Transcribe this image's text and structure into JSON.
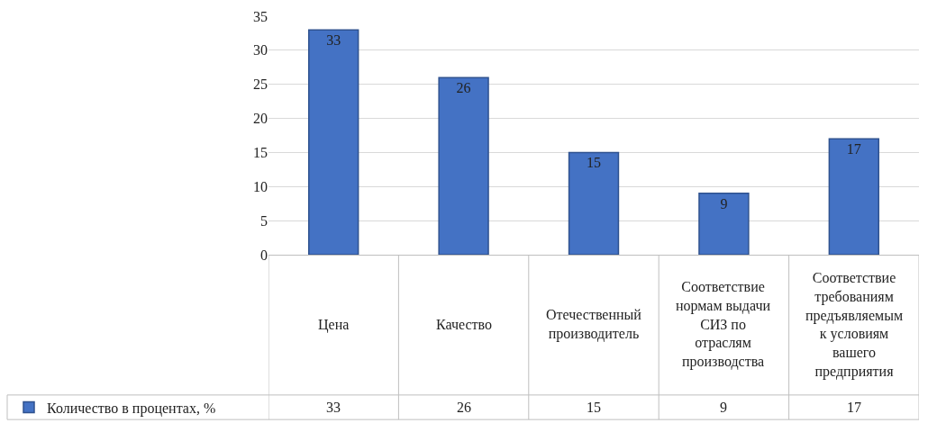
{
  "chart_data": {
    "type": "bar",
    "categories": [
      "Цена",
      "Качество",
      "Отечественный производитель",
      "Соответствие нормам выдачи СИЗ по отраслям производства",
      "Соответствие требованиям предъявляемым к условиям вашего предприятия"
    ],
    "series": [
      {
        "name": "Количество в процентах, %",
        "color": "#4472c4",
        "values": [
          33,
          26,
          15,
          9,
          17
        ],
        "value_labels": [
          "33",
          "26",
          "15",
          "9",
          "17"
        ]
      }
    ],
    "ylim": [
      0,
      35
    ],
    "yticks": [
      0,
      5,
      10,
      15,
      20,
      25,
      30,
      35
    ],
    "grid": "y",
    "annotations": [
      "33",
      "26",
      "15",
      "9",
      "17"
    ],
    "legend": "bottom left"
  }
}
